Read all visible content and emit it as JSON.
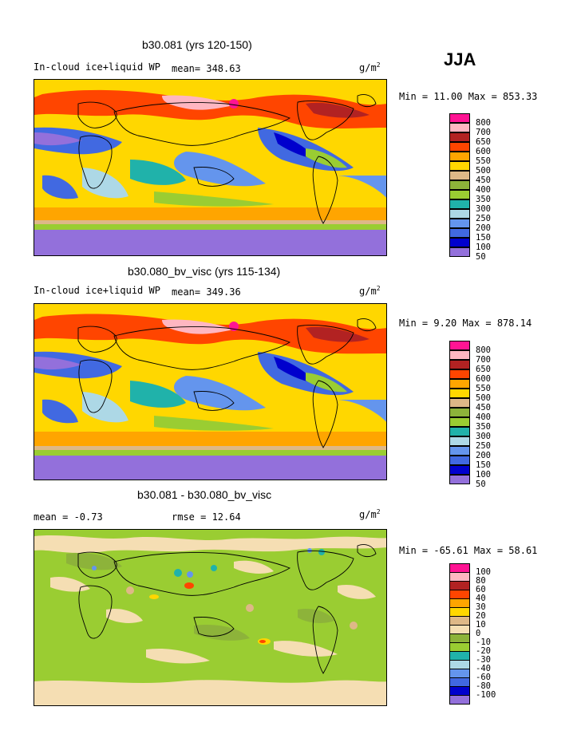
{
  "season": "JJA",
  "units_prefix": "g/m",
  "units_sup": "2",
  "panels": [
    {
      "title": "b30.081 (yrs 120-150)",
      "variable": "In-cloud ice+liquid WP",
      "stat1": "mean= 348.63",
      "stat2": "",
      "minmax": "Min =   11.00 Max = 853.33",
      "legend": [
        "800",
        "700",
        "650",
        "600",
        "550",
        "500",
        "450",
        "400",
        "350",
        "300",
        "250",
        "200",
        "150",
        "100",
        "50"
      ]
    },
    {
      "title": "b30.080_bv_visc (yrs 115-134)",
      "variable": "In-cloud ice+liquid WP",
      "stat1": "mean= 349.36",
      "stat2": "",
      "minmax": "Min =    9.20 Max = 878.14",
      "legend": [
        "800",
        "700",
        "650",
        "600",
        "550",
        "500",
        "450",
        "400",
        "350",
        "300",
        "250",
        "200",
        "150",
        "100",
        "50"
      ]
    },
    {
      "title": "b30.081 - b30.080_bv_visc",
      "variable": "",
      "stat1": "mean =   -0.73",
      "stat2": "rmse =  12.64",
      "minmax": "Min = -65.61 Max =  58.61",
      "legend": [
        "100",
        "80",
        "60",
        "40",
        "30",
        "20",
        "10",
        "0",
        "-10",
        "-20",
        "-30",
        "-40",
        "-60",
        "-80",
        "-100"
      ]
    }
  ],
  "colors": {
    "abs_scale": [
      "#9370db",
      "#0000cd",
      "#4169e1",
      "#6495ed",
      "#add8e6",
      "#20b2aa",
      "#9acd32",
      "#8db33a",
      "#deb887",
      "#ffd700",
      "#ffa500",
      "#ff4500",
      "#b22222",
      "#ffb6c1",
      "#ff1493"
    ],
    "diff_scale": [
      "#9370db",
      "#0000cd",
      "#4169e1",
      "#6495ed",
      "#add8e6",
      "#20b2aa",
      "#9acd32",
      "#8db33a",
      "#f5deb3",
      "#deb887",
      "#ffd700",
      "#ffa500",
      "#ff4500",
      "#b22222",
      "#ffb6c1",
      "#ff1493"
    ]
  }
}
